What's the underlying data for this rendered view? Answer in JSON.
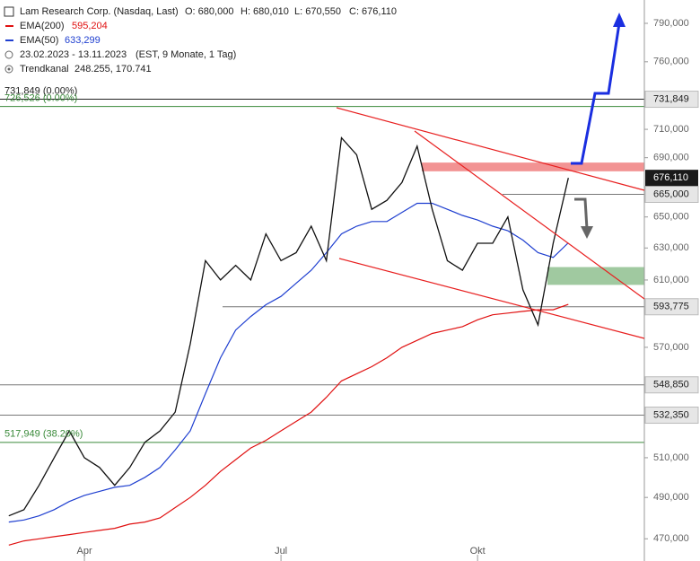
{
  "header": {
    "title": "Lam Research Corp. (Nasdaq, Last)",
    "open": "O: 680,000",
    "high": "H: 680,010",
    "low": "L: 670,550",
    "close": "C: 676,110",
    "period": "23.02.2023 - 13.11.2023",
    "period_note": "(EST, 9 Monate, 1 Tag)",
    "channel": "Trendkanal",
    "channel_values": "248.255, 170.741"
  },
  "chart_data": {
    "type": "line",
    "log_scale": true,
    "categories": [
      null,
      null,
      null,
      null,
      null,
      "Apr",
      null,
      null,
      null,
      null,
      null,
      null,
      null,
      null,
      null,
      null,
      null,
      null,
      "Jul",
      null,
      null,
      null,
      null,
      null,
      null,
      null,
      null,
      null,
      null,
      null,
      null,
      "Okt",
      null,
      null,
      null,
      null,
      null,
      null
    ],
    "series": [
      {
        "name": "Lam Research Corp.",
        "color": "#111111",
        "values": [
          481,
          484,
          496,
          510,
          524,
          510,
          505,
          496,
          505,
          518,
          524,
          534,
          572,
          622,
          610,
          619,
          610,
          639,
          622,
          627,
          644,
          622,
          704,
          692,
          655,
          661,
          673,
          698,
          655,
          622,
          616,
          633,
          633,
          650,
          604,
          583,
          633,
          676.11
        ],
        "last_label": "676,110"
      },
      {
        "name": "EMA(200)",
        "color": "#e01010",
        "values": [
          467,
          469,
          470,
          471,
          472,
          473,
          474,
          475,
          477,
          478,
          480,
          485,
          490,
          496,
          503,
          509,
          515,
          519,
          524,
          529,
          534,
          542,
          551,
          555,
          559,
          564,
          570,
          574,
          578,
          580,
          582,
          586,
          589,
          590,
          591,
          592,
          592,
          595.204
        ],
        "last_label": "595,204"
      },
      {
        "name": "EMA(50)",
        "color": "#1f3fd0",
        "values": [
          478,
          479,
          481,
          484,
          488,
          491,
          493,
          495,
          496,
          500,
          505,
          514,
          524,
          544,
          564,
          580,
          588,
          595,
          600,
          608,
          616,
          627,
          639,
          644,
          647,
          647,
          653,
          659,
          659,
          655,
          651,
          648,
          644,
          641,
          635,
          627,
          624,
          633.299
        ],
        "last_label": "633,299"
      }
    ],
    "ylim": [
      459.6,
      808.8
    ],
    "yticks": [
      {
        "value": 790,
        "label": "790,000"
      },
      {
        "value": 760,
        "label": "760,000"
      },
      {
        "value": 710,
        "label": "710,000"
      },
      {
        "value": 690,
        "label": "690,000"
      },
      {
        "value": 650,
        "label": "650,000"
      },
      {
        "value": 630,
        "label": "630,000"
      },
      {
        "value": 610,
        "label": "610,000"
      },
      {
        "value": 570,
        "label": "570,000"
      },
      {
        "value": 510,
        "label": "510,000"
      },
      {
        "value": 490,
        "label": "490,000"
      },
      {
        "value": 470,
        "label": "470,000"
      }
    ],
    "levels": [
      {
        "value": 731.849,
        "label": "731,849",
        "color": "#222222"
      },
      {
        "value": 665,
        "label": "665,000",
        "color": "#777777"
      },
      {
        "value": 593.775,
        "label": "593,775",
        "color": "#777777"
      },
      {
        "value": 548.85,
        "label": "548,850",
        "color": "#777777"
      },
      {
        "value": 532.35,
        "label": "532,350",
        "color": "#777777"
      }
    ],
    "fib_levels": [
      {
        "value": 731.849,
        "label": "731,849 (0.00%)",
        "color": "#222222"
      },
      {
        "value": 726.526,
        "label": "726,526 (0.00%)",
        "color": "#3a8a3a"
      },
      {
        "value": 517.949,
        "label": "517,949 (38.20%)",
        "color": "#3a8a3a"
      }
    ],
    "zones": [
      {
        "from": 680.6,
        "to": 686.6,
        "color": "#f08080"
      },
      {
        "from": 607,
        "to": 618,
        "color": "#8fc08f"
      }
    ]
  }
}
